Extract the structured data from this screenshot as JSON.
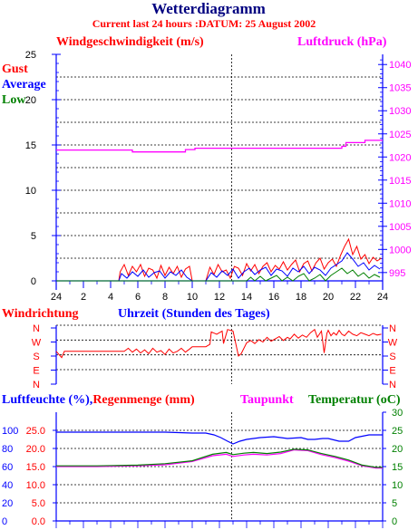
{
  "title": "Wetterdiagramm",
  "subtitle": "Current last 24 hours :DATUM: 25 August 2002",
  "colors": {
    "gust": "#ff0000",
    "average": "#0000ff",
    "low": "#008000",
    "pressure": "#ff00ff",
    "wind_dir": "#ff0000",
    "humidity": "#0000ff",
    "rain": "#ff0000",
    "dewpoint": "#ff00ff",
    "temperature": "#008000",
    "title": "#000080",
    "subtitle": "#ff0000"
  },
  "chart_data": [
    {
      "type": "line",
      "name": "wind-and-pressure",
      "left_label": "Windgeschwindigkeit (m/s)",
      "right_label": "Luftdruck (hPa)",
      "legend": [
        "Gust",
        "Average",
        "Low"
      ],
      "x_labels": [
        "24",
        "2",
        "4",
        "6",
        "8",
        "10",
        "12",
        "14",
        "16",
        "18",
        "20",
        "22",
        "24"
      ],
      "x_ticks": [
        0,
        2,
        4,
        6,
        8,
        10,
        12,
        14,
        16,
        18,
        20,
        22,
        24
      ],
      "xlim": [
        0,
        24
      ],
      "y_left_labels": [
        "0",
        "5",
        "10",
        "15",
        "20",
        "25"
      ],
      "y_left_ticks": [
        0,
        5,
        10,
        15,
        20,
        25
      ],
      "ylim_left": [
        0,
        25
      ],
      "y_right_labels": [
        "995",
        "1000",
        "1005",
        "1010",
        "1015",
        "1020",
        "1025",
        "1030",
        "1035",
        "1040"
      ],
      "y_right_ticks": [
        995,
        1000,
        1005,
        1010,
        1015,
        1020,
        1025,
        1030,
        1035,
        1040
      ],
      "ylim_right": [
        993.2,
        1042.2
      ],
      "series": [
        {
          "name": "Gust",
          "axis": "left",
          "x": [
            0,
            4.6,
            4.7,
            5.0,
            5.3,
            5.6,
            5.9,
            6.2,
            6.5,
            6.8,
            7.1,
            7.4,
            7.7,
            8.0,
            8.3,
            8.6,
            8.9,
            9.2,
            9.5,
            9.8,
            10.0,
            10.5,
            11.0,
            11.3,
            11.6,
            11.9,
            12.2,
            12.5,
            12.8,
            13.1,
            13.4,
            13.7,
            14.0,
            14.3,
            14.6,
            14.9,
            15.2,
            15.5,
            15.8,
            16.1,
            16.4,
            16.7,
            17.0,
            17.3,
            17.6,
            17.9,
            18.2,
            18.5,
            18.8,
            19.1,
            19.4,
            19.7,
            20.0,
            20.3,
            20.6,
            20.9,
            21.2,
            21.5,
            21.8,
            22.1,
            22.4,
            22.7,
            23.0,
            23.3,
            23.6,
            23.9
          ],
          "y": [
            0,
            0,
            1.0,
            1.8,
            0.6,
            1.6,
            1.0,
            1.8,
            0.5,
            1.4,
            1.2,
            0.3,
            1.7,
            0.6,
            1.5,
            0.8,
            1.6,
            0.4,
            1.3,
            1.6,
            0,
            0,
            0,
            1.5,
            0.7,
            1.8,
            1.0,
            1.2,
            0.3,
            1.6,
            1.4,
            0.6,
            1.9,
            1.1,
            1.8,
            0.8,
            1.6,
            2.0,
            1.0,
            1.7,
            1.3,
            2.1,
            1.2,
            1.8,
            2.3,
            1.0,
            1.9,
            2.2,
            1.1,
            2.0,
            2.5,
            1.3,
            2.0,
            2.4,
            1.6,
            2.8,
            3.8,
            4.6,
            2.9,
            3.8,
            2.4,
            2.9,
            1.9,
            2.6,
            2.2,
            2.5
          ]
        },
        {
          "name": "Average",
          "axis": "left",
          "x": [
            0,
            4.6,
            4.8,
            5.2,
            5.6,
            6.0,
            6.4,
            6.8,
            7.2,
            7.6,
            8.0,
            8.4,
            8.8,
            9.2,
            9.6,
            10.0,
            11.0,
            11.4,
            11.8,
            12.2,
            12.6,
            13.0,
            13.4,
            13.8,
            14.2,
            14.6,
            15.0,
            15.4,
            15.8,
            16.2,
            16.6,
            17.0,
            17.4,
            17.8,
            18.2,
            18.6,
            19.0,
            19.4,
            19.8,
            20.2,
            20.6,
            21.0,
            21.4,
            21.8,
            22.2,
            22.6,
            23.0,
            23.4,
            23.8
          ],
          "y": [
            0,
            0,
            0.8,
            0.3,
            1.0,
            0.5,
            1.2,
            0.4,
            0.9,
            1.1,
            0.3,
            1.0,
            0.6,
            1.2,
            0.4,
            0,
            0,
            0.9,
            0.4,
            1.1,
            0.6,
            1.3,
            0.3,
            1.0,
            1.4,
            0.7,
            1.2,
            1.5,
            0.6,
            1.3,
            1.1,
            0.5,
            1.4,
            1.0,
            1.6,
            0.8,
            1.5,
            1.2,
            0.6,
            1.4,
            1.8,
            2.2,
            3.1,
            2.4,
            1.6,
            2.0,
            1.2,
            1.7,
            1.3
          ]
        },
        {
          "name": "Low",
          "axis": "left",
          "x": [
            0,
            14.0,
            14.3,
            14.6,
            15.0,
            15.4,
            15.8,
            16.2,
            16.6,
            17.0,
            17.4,
            17.8,
            18.2,
            18.6,
            19.0,
            19.4,
            19.8,
            20.2,
            20.6,
            21.0,
            21.4,
            21.8,
            22.2,
            22.6,
            23.0,
            23.4,
            23.8
          ],
          "y": [
            0,
            0,
            0.4,
            0,
            0.5,
            0,
            0.3,
            0.6,
            0,
            0.4,
            0,
            0.5,
            0.8,
            0,
            0.3,
            0.7,
            0,
            0.6,
            1.0,
            1.4,
            0.8,
            1.2,
            0.5,
            0.9,
            0.3,
            0.7,
            0.4
          ]
        },
        {
          "name": "Luftdruck",
          "axis": "right",
          "x": [
            0,
            5.6,
            5.6,
            9.5,
            9.5,
            10.2,
            10.2,
            21.0,
            21.0,
            21.3,
            21.3,
            22.7,
            22.7,
            24
          ],
          "y": [
            1021.5,
            1021.5,
            1021.1,
            1021.1,
            1021.6,
            1021.6,
            1021.9,
            1021.9,
            1022.3,
            1022.3,
            1023.1,
            1023.1,
            1023.6,
            1023.6
          ]
        }
      ]
    },
    {
      "type": "line",
      "name": "wind-direction",
      "left_label": "Windrichtung",
      "center_label": "Uhrzeit (Stunden des Tages)",
      "y_labels": [
        "E",
        "S",
        "W",
        "N"
      ],
      "x_labels": [],
      "xlim": [
        0,
        24
      ],
      "series": [
        {
          "name": "Windrichtung",
          "x": [
            0,
            0.4,
            0.6,
            5.0,
            5.3,
            5.6,
            5.9,
            6.2,
            6.5,
            6.8,
            7.1,
            7.4,
            7.7,
            8.0,
            8.3,
            8.6,
            8.9,
            9.2,
            9.5,
            9.8,
            10.0,
            11.0,
            11.3,
            11.4,
            11.8,
            12.2,
            12.3,
            12.6,
            13.0,
            13.4,
            13.6,
            14.0,
            14.3,
            14.6,
            14.9,
            15.2,
            15.5,
            15.8,
            16.1,
            16.4,
            16.7,
            17.0,
            17.2,
            17.5,
            17.8,
            18.1,
            18.4,
            18.7,
            19.0,
            19.2,
            19.5,
            19.7,
            19.9,
            20.0,
            20.2,
            20.4,
            20.6,
            20.8,
            21.0,
            21.2,
            21.5,
            21.8,
            22.1,
            22.4,
            22.7,
            23.0,
            23.3,
            23.6,
            23.9
          ],
          "y": [
            210,
            170,
            210,
            210,
            230,
            205,
            225,
            200,
            220,
            195,
            230,
            205,
            215,
            190,
            225,
            200,
            210,
            230,
            205,
            225,
            240,
            240,
            255,
            335,
            320,
            340,
            260,
            350,
            340,
            180,
            195,
            265,
            280,
            260,
            285,
            270,
            300,
            275,
            290,
            305,
            280,
            300,
            290,
            320,
            295,
            315,
            300,
            330,
            350,
            300,
            340,
            200,
            325,
            345,
            310,
            330,
            315,
            345,
            320,
            310,
            340,
            320,
            310,
            330,
            320,
            310,
            325,
            315,
            320
          ]
        }
      ]
    },
    {
      "type": "line",
      "name": "humidity-rain-temperature",
      "left_label": "Luftfeuchte (%),",
      "left_label_2": "Regenmenge (mm)",
      "dew_label": "Taupunkt",
      "right_label": "Temperatur (",
      "right_label_unit": "oC)",
      "y_left_labels": [
        "0",
        "20",
        "40",
        "60",
        "80",
        "100"
      ],
      "y_left_ticks": [
        0,
        20,
        40,
        60,
        80,
        100
      ],
      "ylim_left": [
        0,
        120
      ],
      "y_rain_labels": [
        "0.0",
        "5.0",
        "10.0",
        "15.0",
        "20.0",
        "25.0"
      ],
      "y_rain_ticks": [
        0,
        5,
        10,
        15,
        20,
        25
      ],
      "ylim_rain": [
        0,
        30
      ],
      "y_right_labels": [
        "0",
        "5",
        "10",
        "15",
        "20",
        "25",
        "30"
      ],
      "y_right_ticks": [
        0,
        5,
        10,
        15,
        20,
        25,
        30
      ],
      "ylim_right": [
        0,
        30
      ],
      "xlim": [
        0,
        24
      ],
      "series": [
        {
          "name": "Luftfeuchte",
          "axis": "left",
          "x": [
            0,
            2,
            4,
            6,
            8,
            10,
            11,
            11.6,
            12.1,
            12.6,
            13,
            13.5,
            14,
            15,
            16,
            17,
            18,
            18.5,
            19,
            19.6,
            20,
            20.8,
            21.5,
            22,
            23,
            24
          ],
          "y": [
            98,
            98,
            98,
            98,
            98,
            97,
            97,
            95,
            92,
            88,
            85,
            88,
            90,
            92,
            93,
            91,
            92,
            90,
            90,
            91,
            91,
            88,
            88,
            92,
            95,
            95
          ]
        },
        {
          "name": "Taupunkt",
          "axis": "right",
          "x": [
            0,
            3,
            6,
            8,
            10,
            11.5,
            12.5,
            13,
            13.8,
            14.5,
            15.5,
            16.5,
            17.5,
            18.5,
            19.5,
            20.5,
            21.5,
            22.5,
            23.5,
            24
          ],
          "y": [
            15,
            15,
            15.2,
            15.5,
            16.4,
            18,
            18.4,
            17.8,
            18.2,
            18.4,
            18.2,
            18.6,
            19.6,
            19.4,
            18.3,
            17.5,
            16.5,
            15.2,
            14.6,
            14.6
          ]
        },
        {
          "name": "Temperatur",
          "axis": "right",
          "x": [
            0,
            3,
            6,
            8,
            10,
            11.5,
            12.5,
            13,
            13.8,
            14.5,
            15.5,
            16.5,
            17.5,
            18.5,
            19.5,
            20.5,
            21.5,
            22.5,
            23.5,
            24
          ],
          "y": [
            15.2,
            15.2,
            15.4,
            15.8,
            16.6,
            18.4,
            18.9,
            18.3,
            18.7,
            18.9,
            18.6,
            19,
            19.8,
            19.6,
            18.6,
            17.8,
            16.8,
            15.4,
            14.8,
            14.8
          ]
        }
      ]
    }
  ]
}
